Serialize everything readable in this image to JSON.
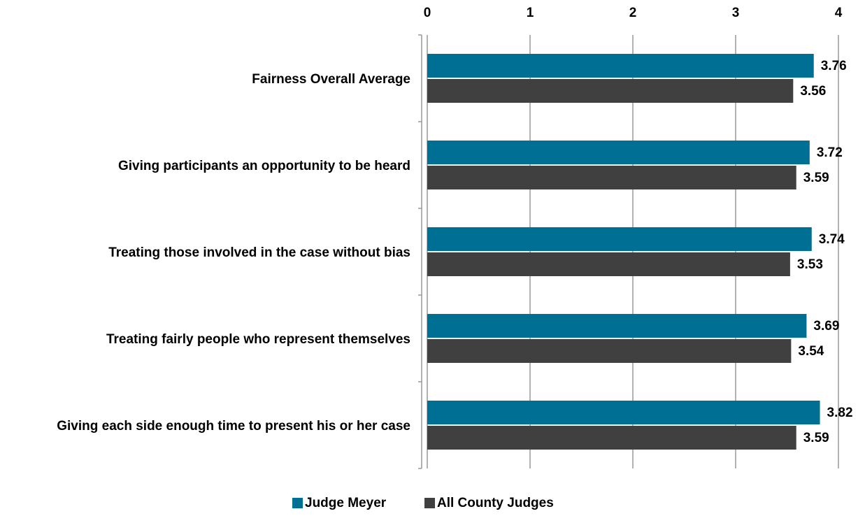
{
  "chart_data": {
    "type": "bar",
    "orientation": "horizontal",
    "categories": [
      "Fairness Overall Average",
      "Giving participants an opportunity to be heard",
      "Treating those involved in the case without bias",
      "Treating fairly people who represent themselves",
      "Giving each side enough time to present his or her case"
    ],
    "series": [
      {
        "name": "Judge Meyer",
        "color": "#006f94",
        "values": [
          3.76,
          3.72,
          3.74,
          3.69,
          3.82
        ]
      },
      {
        "name": "All County Judges",
        "color": "#404040",
        "values": [
          3.56,
          3.59,
          3.53,
          3.54,
          3.59
        ]
      }
    ],
    "xlim": [
      0,
      4
    ],
    "xticks": [
      0,
      1,
      2,
      3,
      4
    ],
    "grid": true,
    "legend": "bottom"
  }
}
